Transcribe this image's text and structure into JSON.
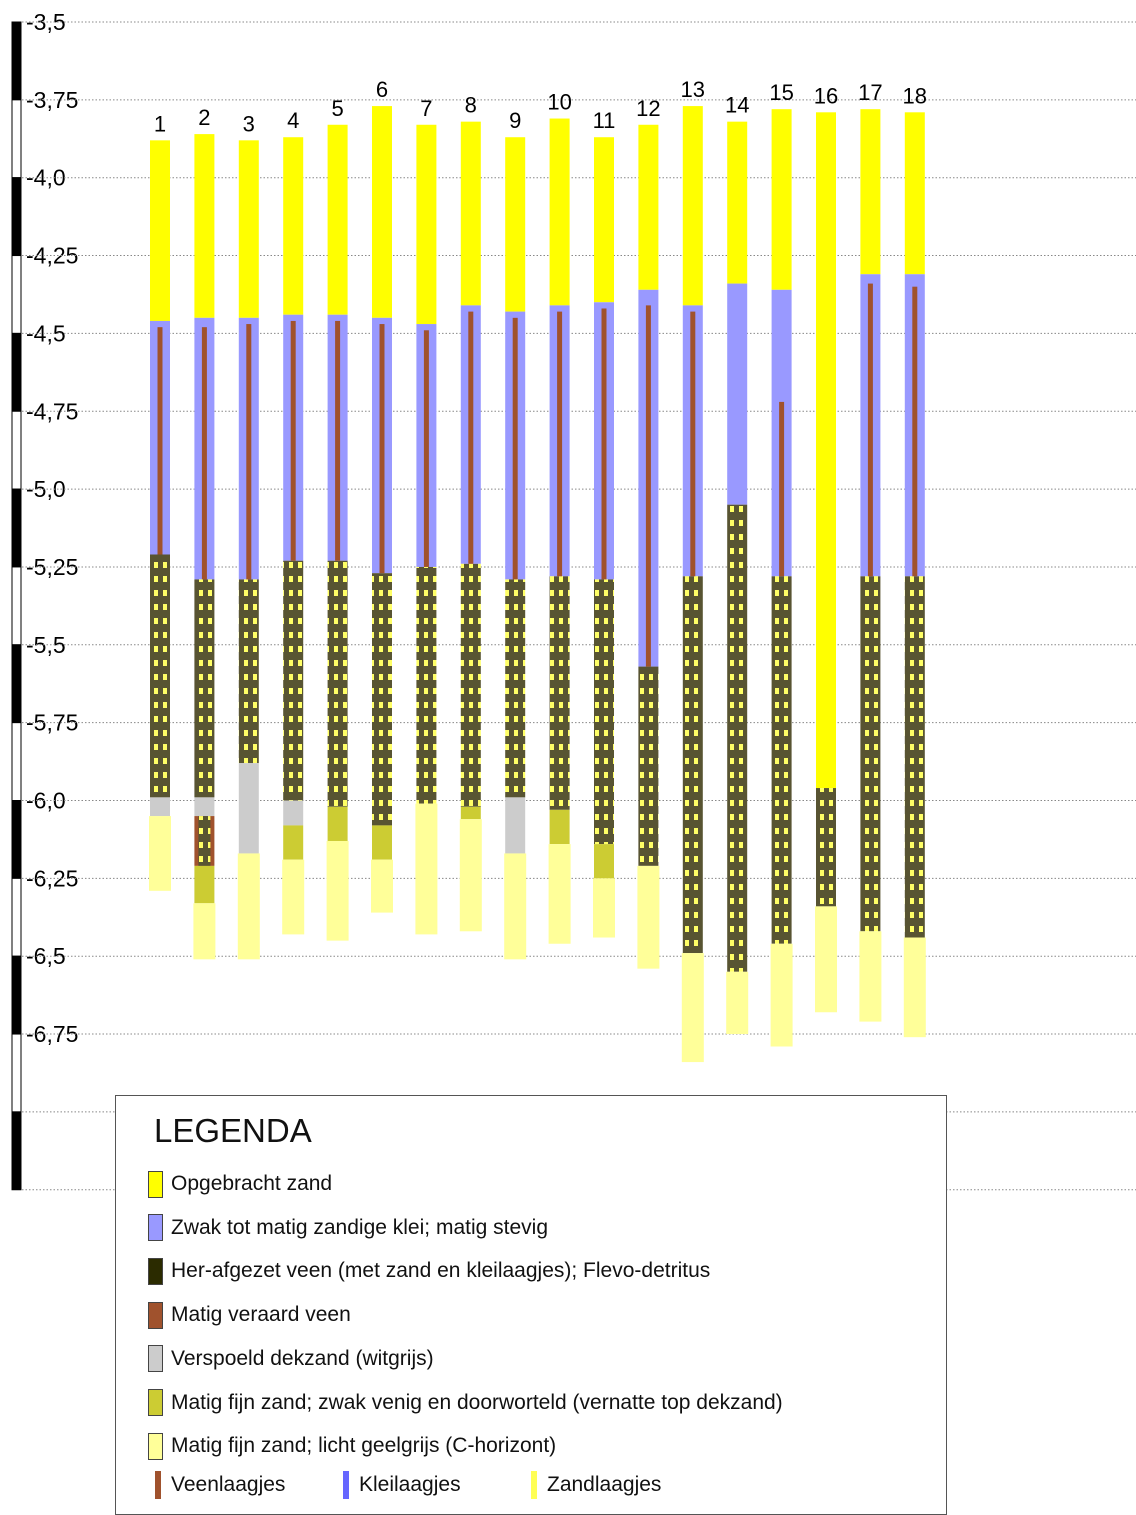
{
  "colors": {
    "opgebracht_zand": "#ffff00",
    "klei": "#9999ff",
    "her_afgezet_veen": "#585432",
    "her_afgezet_veen_legend": "#2b2b00",
    "her_afgezet_veen_dots": "#ffff66",
    "veraard_veen": "#a0522d",
    "verspoeld_dekzand": "#cccccc",
    "vernatte_top_dekzand": "#cccc33",
    "c_horizont": "#ffff99",
    "veenlaagjes": "#a0522d",
    "kleilaagjes": "#6666ff",
    "zandlaagjes": "#ffff55"
  },
  "chart_data": {
    "type": "stacked-column-profile",
    "ylim": [
      -7.0,
      -3.5
    ],
    "y_ticks": [
      "-3,5",
      "-3,75",
      "-4,0",
      "-4,25",
      "-4,5",
      "-4,75",
      "-5,0",
      "-5,25",
      "-5,5",
      "-5,75",
      "-6,0",
      "-6,25",
      "-6,5",
      "-6,75"
    ],
    "y_tick_values": [
      -3.5,
      -3.75,
      -4.0,
      -4.25,
      -4.5,
      -4.75,
      -5.0,
      -5.25,
      -5.5,
      -5.75,
      -6.0,
      -6.25,
      -6.5,
      -6.75
    ],
    "grid": true,
    "columns": [
      {
        "label": "1",
        "layers": [
          [
            "opgebracht_zand",
            -3.88,
            -4.46
          ],
          [
            "klei",
            -4.46,
            -5.21
          ],
          [
            "her_afgezet_veen",
            -5.21,
            -5.99
          ],
          [
            "verspoeld_dekzand",
            -5.99,
            -6.05
          ],
          [
            "c_horizont",
            -6.05,
            -6.29
          ]
        ],
        "inclusions": [
          [
            "veen",
            -4.48,
            -5.21
          ]
        ]
      },
      {
        "label": "2",
        "layers": [
          [
            "opgebracht_zand",
            -3.86,
            -4.45
          ],
          [
            "klei",
            -4.45,
            -5.29
          ],
          [
            "her_afgezet_veen",
            -5.29,
            -5.99
          ],
          [
            "verspoeld_dekzand",
            -5.99,
            -6.05
          ],
          [
            "veraard_veen",
            -6.05,
            -6.21
          ],
          [
            "vernatte_top_dekzand",
            -6.21,
            -6.33
          ],
          [
            "c_horizont",
            -6.33,
            -6.51
          ]
        ],
        "inclusions": [
          [
            "veen",
            -4.48,
            -5.29
          ]
        ]
      },
      {
        "label": "3",
        "layers": [
          [
            "opgebracht_zand",
            -3.88,
            -4.45
          ],
          [
            "klei",
            -4.45,
            -5.29
          ],
          [
            "her_afgezet_veen",
            -5.29,
            -5.88
          ],
          [
            "verspoeld_dekzand",
            -5.88,
            -6.17
          ],
          [
            "c_horizont",
            -6.17,
            -6.51
          ]
        ],
        "inclusions": [
          [
            "veen",
            -4.47,
            -5.29
          ]
        ]
      },
      {
        "label": "4",
        "layers": [
          [
            "opgebracht_zand",
            -3.87,
            -4.44
          ],
          [
            "klei",
            -4.44,
            -5.23
          ],
          [
            "her_afgezet_veen",
            -5.23,
            -6.0
          ],
          [
            "verspoeld_dekzand",
            -6.0,
            -6.08
          ],
          [
            "vernatte_top_dekzand",
            -6.08,
            -6.19
          ],
          [
            "c_horizont",
            -6.19,
            -6.43
          ]
        ],
        "inclusions": [
          [
            "veen",
            -4.46,
            -5.23
          ]
        ]
      },
      {
        "label": "5",
        "layers": [
          [
            "opgebracht_zand",
            -3.83,
            -4.44
          ],
          [
            "klei",
            -4.44,
            -5.23
          ],
          [
            "her_afgezet_veen",
            -5.23,
            -6.02
          ],
          [
            "vernatte_top_dekzand",
            -6.02,
            -6.13
          ],
          [
            "c_horizont",
            -6.13,
            -6.45
          ]
        ],
        "inclusions": [
          [
            "veen",
            -4.46,
            -5.23
          ]
        ]
      },
      {
        "label": "6",
        "layers": [
          [
            "opgebracht_zand",
            -3.77,
            -4.45
          ],
          [
            "klei",
            -4.45,
            -5.27
          ],
          [
            "her_afgezet_veen",
            -5.27,
            -6.08
          ],
          [
            "vernatte_top_dekzand",
            -6.08,
            -6.19
          ],
          [
            "c_horizont",
            -6.19,
            -6.36
          ]
        ],
        "inclusions": [
          [
            "veen",
            -4.47,
            -5.27
          ]
        ]
      },
      {
        "label": "7",
        "layers": [
          [
            "opgebracht_zand",
            -3.83,
            -4.47
          ],
          [
            "klei",
            -4.47,
            -5.25
          ],
          [
            "her_afgezet_veen",
            -5.25,
            -6.01
          ],
          [
            "c_horizont",
            -6.01,
            -6.43
          ]
        ],
        "inclusions": [
          [
            "veen",
            -4.49,
            -5.25
          ]
        ]
      },
      {
        "label": "8",
        "layers": [
          [
            "opgebracht_zand",
            -3.82,
            -4.41
          ],
          [
            "klei",
            -4.41,
            -5.24
          ],
          [
            "her_afgezet_veen",
            -5.24,
            -6.02
          ],
          [
            "vernatte_top_dekzand",
            -6.02,
            -6.06
          ],
          [
            "c_horizont",
            -6.06,
            -6.42
          ]
        ],
        "inclusions": [
          [
            "veen",
            -4.43,
            -5.24
          ]
        ]
      },
      {
        "label": "9",
        "layers": [
          [
            "opgebracht_zand",
            -3.87,
            -4.43
          ],
          [
            "klei",
            -4.43,
            -5.29
          ],
          [
            "her_afgezet_veen",
            -5.29,
            -5.99
          ],
          [
            "verspoeld_dekzand",
            -5.99,
            -6.17
          ],
          [
            "c_horizont",
            -6.17,
            -6.51
          ]
        ],
        "inclusions": [
          [
            "veen",
            -4.45,
            -5.29
          ]
        ]
      },
      {
        "label": "10",
        "layers": [
          [
            "opgebracht_zand",
            -3.81,
            -4.41
          ],
          [
            "klei",
            -4.41,
            -5.28
          ],
          [
            "her_afgezet_veen",
            -5.28,
            -6.03
          ],
          [
            "vernatte_top_dekzand",
            -6.03,
            -6.14
          ],
          [
            "c_horizont",
            -6.14,
            -6.46
          ]
        ],
        "inclusions": [
          [
            "veen",
            -4.43,
            -5.28
          ]
        ]
      },
      {
        "label": "11",
        "layers": [
          [
            "opgebracht_zand",
            -3.87,
            -4.4
          ],
          [
            "klei",
            -4.4,
            -5.29
          ],
          [
            "her_afgezet_veen",
            -5.29,
            -6.14
          ],
          [
            "vernatte_top_dekzand",
            -6.14,
            -6.25
          ],
          [
            "c_horizont",
            -6.25,
            -6.44
          ]
        ],
        "inclusions": [
          [
            "veen",
            -4.42,
            -5.29
          ]
        ]
      },
      {
        "label": "12",
        "layers": [
          [
            "opgebracht_zand",
            -3.83,
            -4.36
          ],
          [
            "klei",
            -4.36,
            -5.57
          ],
          [
            "her_afgezet_veen",
            -5.57,
            -6.21
          ],
          [
            "c_horizont",
            -6.21,
            -6.54
          ]
        ],
        "inclusions": [
          [
            "veen",
            -4.41,
            -5.57
          ]
        ]
      },
      {
        "label": "13",
        "layers": [
          [
            "opgebracht_zand",
            -3.77,
            -4.41
          ],
          [
            "klei",
            -4.41,
            -5.28
          ],
          [
            "her_afgezet_veen",
            -5.28,
            -6.49
          ],
          [
            "c_horizont",
            -6.49,
            -6.84
          ]
        ],
        "inclusions": [
          [
            "veen",
            -4.43,
            -5.28
          ]
        ]
      },
      {
        "label": "14",
        "layers": [
          [
            "opgebracht_zand",
            -3.82,
            -4.34
          ],
          [
            "klei",
            -4.34,
            -5.05
          ],
          [
            "her_afgezet_veen",
            -5.05,
            -6.55
          ],
          [
            "c_horizont",
            -6.55,
            -6.75
          ]
        ],
        "inclusions": []
      },
      {
        "label": "15",
        "layers": [
          [
            "opgebracht_zand",
            -3.78,
            -4.36
          ],
          [
            "klei",
            -4.36,
            -5.28
          ],
          [
            "her_afgezet_veen",
            -5.28,
            -6.46
          ],
          [
            "c_horizont",
            -6.46,
            -6.79
          ]
        ],
        "inclusions": [
          [
            "veen",
            -4.72,
            -5.28
          ]
        ]
      },
      {
        "label": "16",
        "layers": [
          [
            "opgebracht_zand",
            -3.79,
            -5.96
          ],
          [
            "her_afgezet_veen",
            -5.96,
            -6.34
          ],
          [
            "c_horizont",
            -6.34,
            -6.68
          ]
        ],
        "inclusions": []
      },
      {
        "label": "17",
        "layers": [
          [
            "opgebracht_zand",
            -3.78,
            -4.31
          ],
          [
            "klei",
            -4.31,
            -5.28
          ],
          [
            "her_afgezet_veen",
            -5.28,
            -6.42
          ],
          [
            "c_horizont",
            -6.42,
            -6.71
          ]
        ],
        "inclusions": [
          [
            "veen",
            -4.34,
            -5.28
          ]
        ]
      },
      {
        "label": "18",
        "layers": [
          [
            "opgebracht_zand",
            -3.79,
            -4.31
          ],
          [
            "klei",
            -4.31,
            -5.28
          ],
          [
            "her_afgezet_veen",
            -5.28,
            -6.44
          ],
          [
            "c_horizont",
            -6.44,
            -6.76
          ]
        ],
        "inclusions": [
          [
            "veen",
            -4.35,
            -5.28
          ]
        ]
      }
    ]
  },
  "legend": {
    "title": "LEGENDA",
    "items": [
      {
        "key": "opgebracht_zand",
        "label": "Opgebracht zand"
      },
      {
        "key": "klei",
        "label": "Zwak tot matig zandige klei; matig stevig"
      },
      {
        "key": "her_afgezet_veen_legend",
        "label": "Her-afgezet veen (met zand en kleilaagjes); Flevo-detritus"
      },
      {
        "key": "veraard_veen",
        "label": "Matig veraard veen"
      },
      {
        "key": "verspoeld_dekzand",
        "label": "Verspoeld dekzand (witgrijs)"
      },
      {
        "key": "vernatte_top_dekzand",
        "label": "Matig fijn zand; zwak venig en doorworteld (vernatte top dekzand)"
      },
      {
        "key": "c_horizont",
        "label": "Matig fijn zand; licht geelgrijs (C-horizont)"
      }
    ],
    "small": [
      {
        "key": "veenlaagjes",
        "label": "Veenlaagjes"
      },
      {
        "key": "kleilaagjes",
        "label": "Kleilaagjes"
      },
      {
        "key": "zandlaagjes",
        "label": "Zandlaagjes"
      }
    ]
  }
}
